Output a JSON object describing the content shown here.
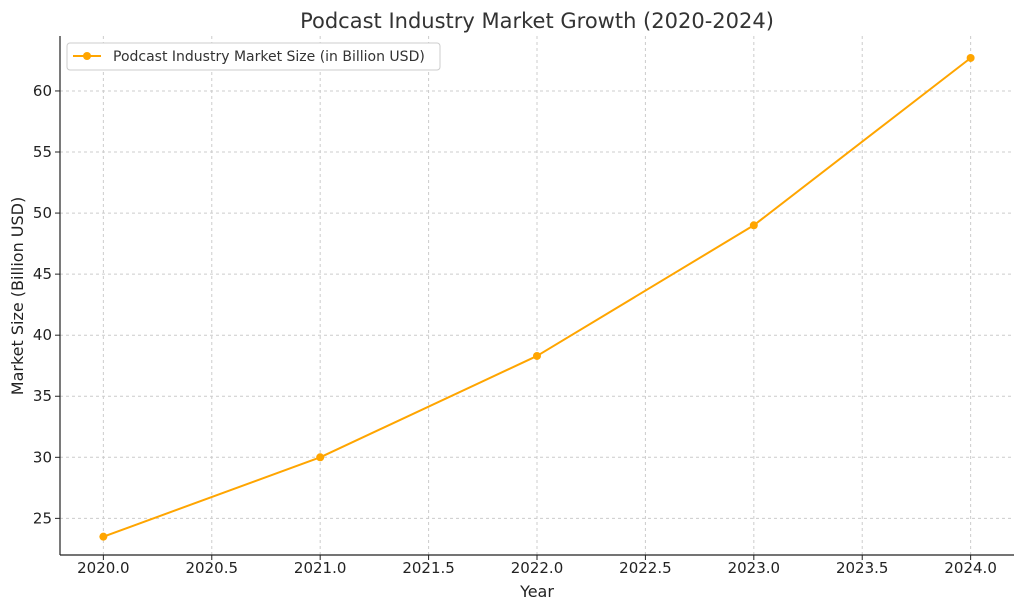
{
  "chart_data": {
    "type": "line",
    "title": "Podcast Industry Market Growth (2020-2024)",
    "xlabel": "Year",
    "ylabel": "Market Size (Billion USD)",
    "xlim": [
      2019.8,
      2024.2
    ],
    "ylim": [
      22.0,
      64.5
    ],
    "xticks": [
      2020.0,
      2020.5,
      2021.0,
      2021.5,
      2022.0,
      2022.5,
      2023.0,
      2023.5,
      2024.0
    ],
    "xtick_labels": [
      "2020.0",
      "2020.5",
      "2021.0",
      "2021.5",
      "2022.0",
      "2022.5",
      "2023.0",
      "2023.5",
      "2024.0"
    ],
    "yticks": [
      25,
      30,
      35,
      40,
      45,
      50,
      55,
      60
    ],
    "ytick_labels": [
      "25",
      "30",
      "35",
      "40",
      "45",
      "50",
      "55",
      "60"
    ],
    "grid": true,
    "legend_position": "top-left",
    "series": [
      {
        "name": "Podcast Industry Market Size (in Billion USD)",
        "color": "#FFA500",
        "x": [
          2020,
          2021,
          2022,
          2023,
          2024
        ],
        "y": [
          23.5,
          30.0,
          38.3,
          49.0,
          62.7
        ]
      }
    ]
  }
}
